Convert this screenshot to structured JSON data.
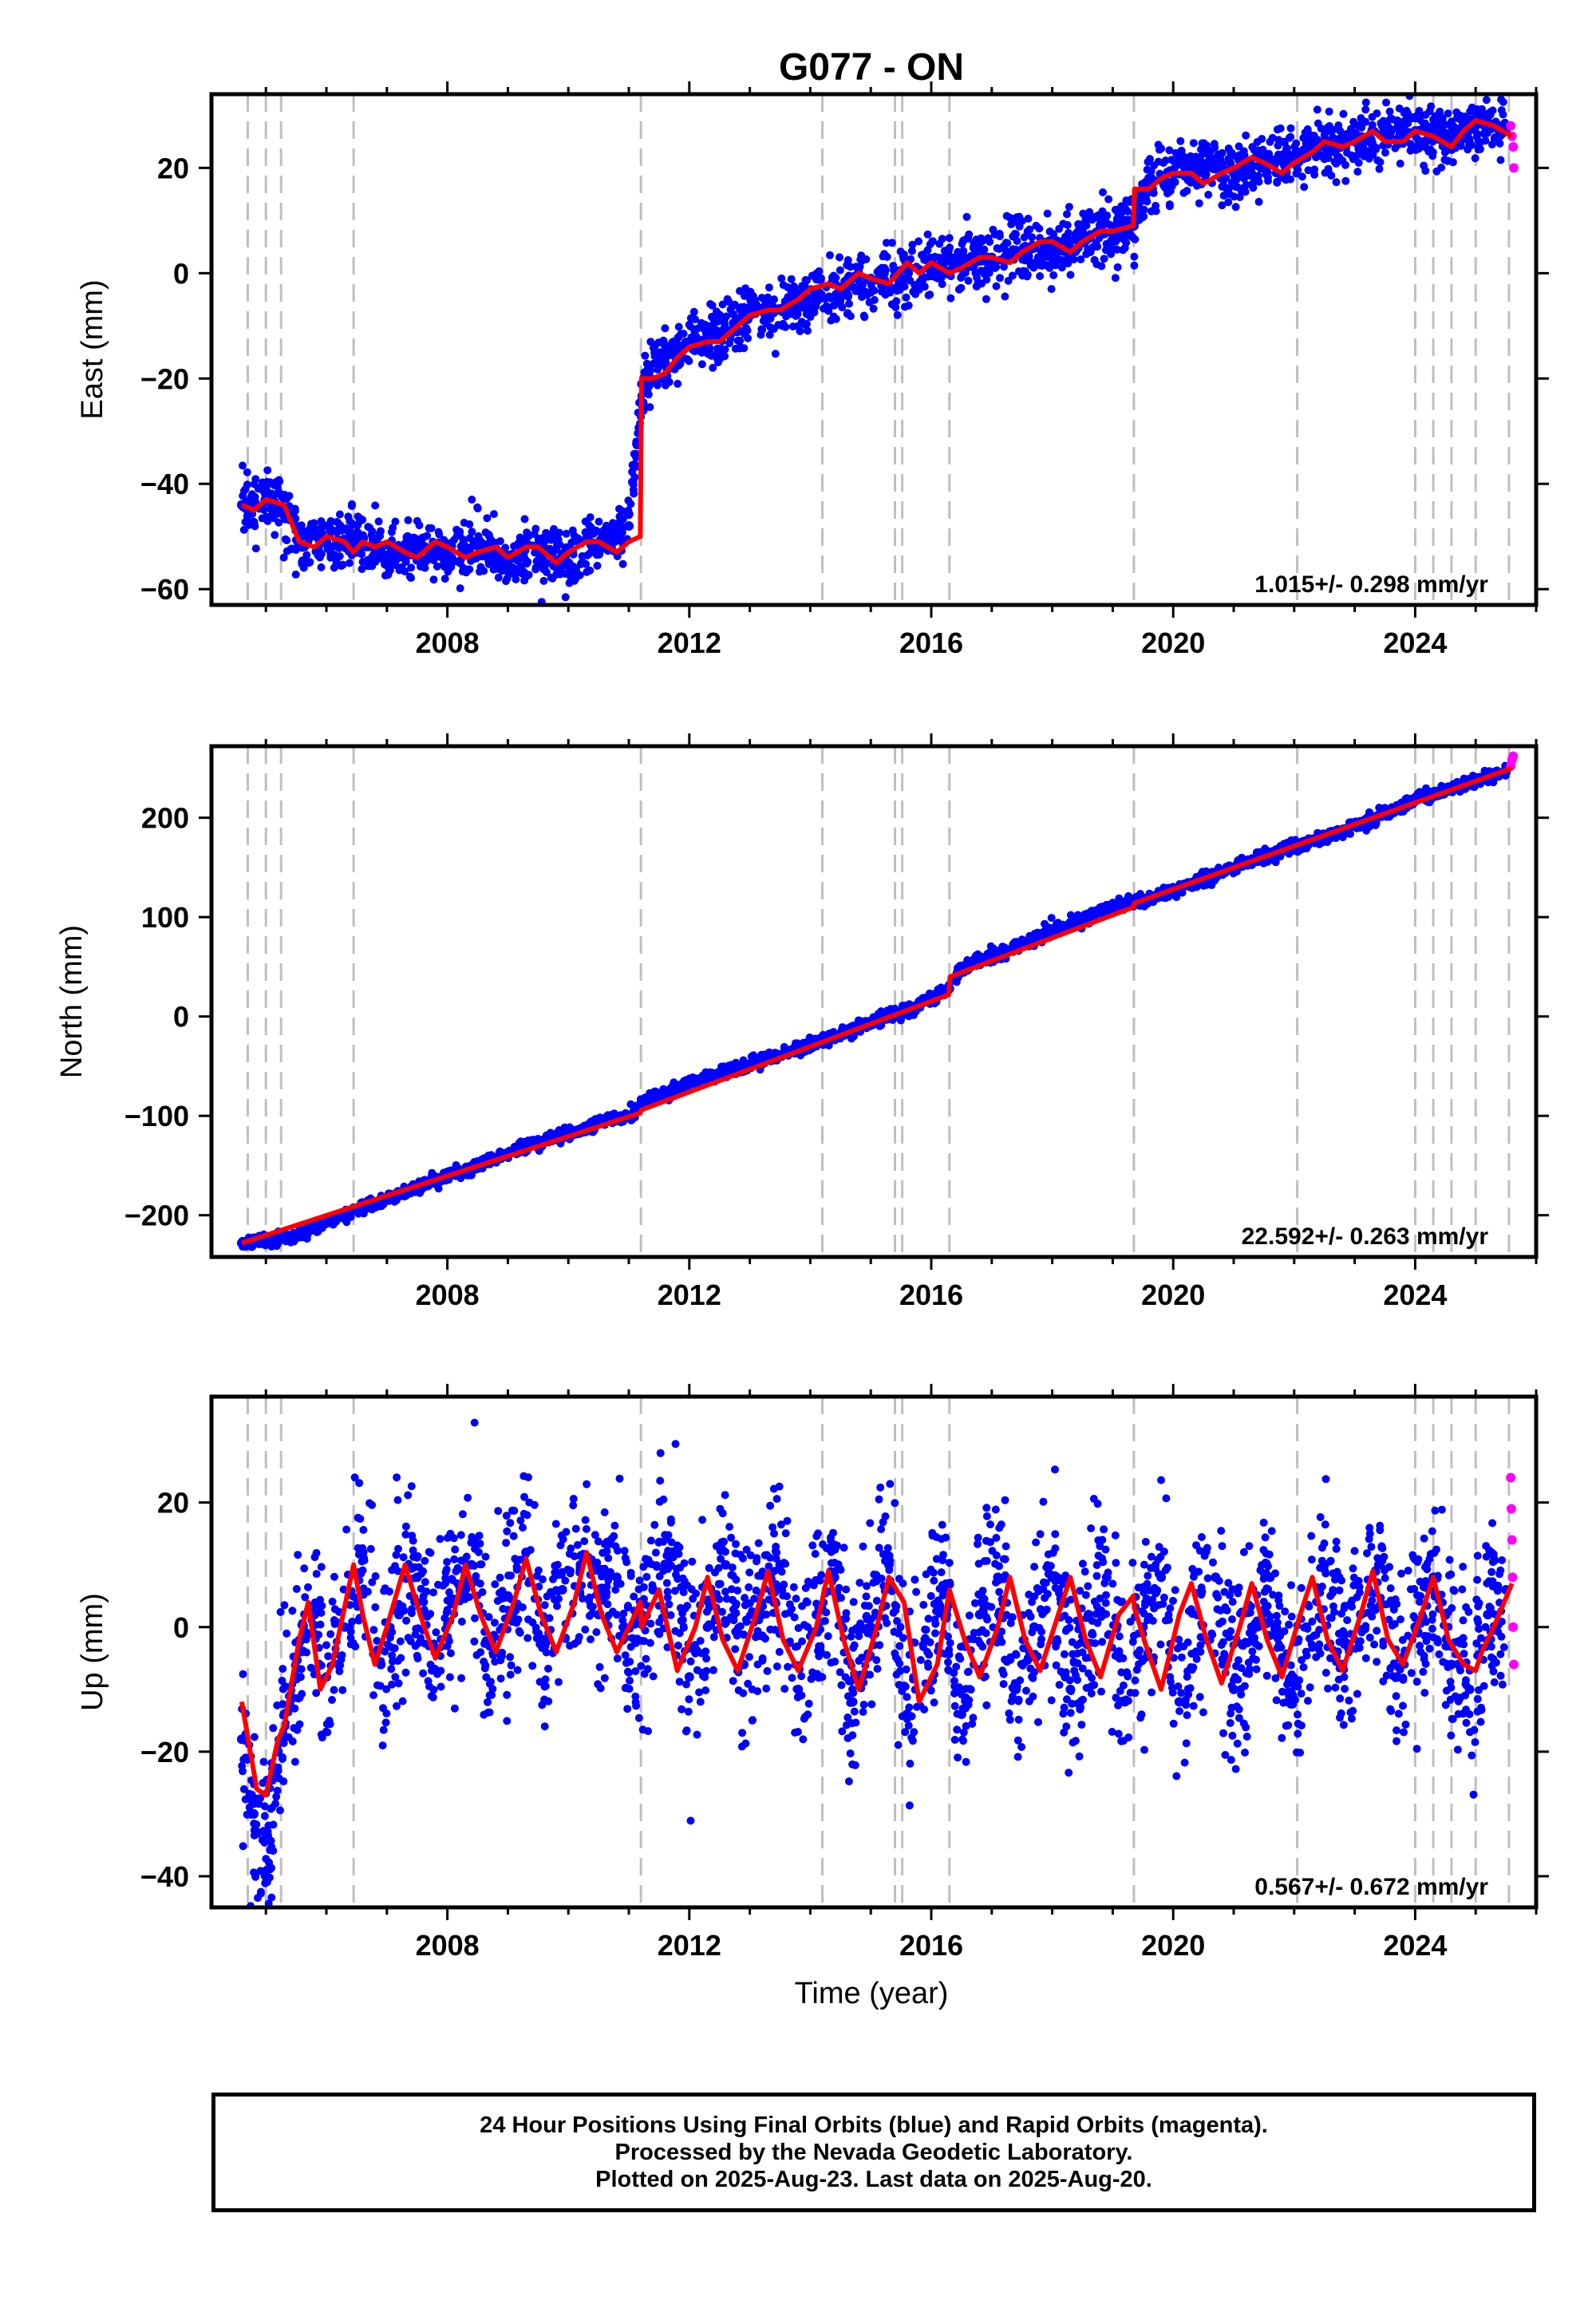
{
  "title": "G077 - ON",
  "colors": {
    "final_orbits": "#0000ff",
    "rapid_orbits": "#ff00ff",
    "model": "#ff0000",
    "event_lines": "#bfbfbf",
    "frame": "#000000"
  },
  "xlabel": "Time (year)",
  "caption": [
    "24 Hour Positions Using Final Orbits (blue) and Rapid Orbits (magenta).",
    "Processed by the Nevada Geodetic Laboratory.",
    "Plotted on 2025-Aug-23. Last data on 2025-Aug-20."
  ],
  "chart_data": [
    {
      "type": "scatter",
      "component": "east",
      "ylabel": "East (mm)",
      "xlim": [
        2004.1,
        2026.0
      ],
      "ylim": [
        -63,
        34
      ],
      "xticks": [
        2008,
        2012,
        2016,
        2020,
        2024
      ],
      "yticks": [
        -60,
        -40,
        -20,
        0,
        20
      ],
      "grid": false,
      "rate_label": "1.015+/- 0.298 mm/yr",
      "event_lines": [
        2004.7,
        2005.0,
        2005.25,
        2006.45,
        2011.2,
        2014.2,
        2015.4,
        2015.52,
        2016.3,
        2019.35,
        2022.05,
        2024.0,
        2024.3,
        2024.6,
        2025.0,
        2025.55
      ],
      "series": [
        {
          "name": "Final Orbits",
          "x": [
            2004.6,
            2005.0,
            2005.3,
            2005.6,
            2006.0,
            2006.5,
            2007.0,
            2007.5,
            2008.0,
            2008.5,
            2009.0,
            2009.5,
            2010.0,
            2010.5,
            2011.0,
            2011.25,
            2011.6,
            2012.0,
            2012.5,
            2013.0,
            2013.5,
            2014.0,
            2014.5,
            2015.0,
            2015.5,
            2016.0,
            2016.5,
            2017.0,
            2017.5,
            2018.0,
            2018.5,
            2019.0,
            2019.35,
            2019.6,
            2020.0,
            2020.5,
            2021.0,
            2021.5,
            2022.0,
            2022.5,
            2023.0,
            2023.5,
            2024.0,
            2024.5,
            2025.0,
            2025.5
          ],
          "y": [
            -44,
            -42,
            -45,
            -52,
            -51,
            -50,
            -54,
            -52,
            -54,
            -51,
            -55,
            -53,
            -55,
            -52,
            -48,
            -20,
            -16,
            -13,
            -12,
            -8,
            -7,
            -5,
            -3,
            -1,
            -1,
            1,
            2,
            3,
            4,
            5,
            7,
            8,
            9,
            18,
            19,
            20,
            19,
            21,
            22,
            24,
            25,
            26,
            27,
            26,
            28,
            27
          ]
        },
        {
          "name": "Rapid Orbits",
          "x": [
            2025.58,
            2025.6,
            2025.62,
            2025.63
          ],
          "y": [
            28,
            26,
            24,
            20
          ]
        }
      ],
      "model": {
        "x": [
          2004.6,
          2004.8,
          2005.0,
          2005.3,
          2005.55,
          2005.8,
          2006.0,
          2006.3,
          2006.45,
          2006.6,
          2006.8,
          2007.0,
          2007.3,
          2007.5,
          2007.8,
          2008.0,
          2008.3,
          2008.5,
          2008.8,
          2009.0,
          2009.3,
          2009.5,
          2009.8,
          2010.0,
          2010.3,
          2010.5,
          2010.8,
          2011.0,
          2011.19,
          2011.21,
          2011.4,
          2011.6,
          2011.8,
          2012.0,
          2012.3,
          2012.5,
          2012.8,
          2013.0,
          2013.3,
          2013.5,
          2013.8,
          2014.0,
          2014.3,
          2014.5,
          2014.8,
          2015.0,
          2015.3,
          2015.45,
          2015.6,
          2015.8,
          2016.0,
          2016.3,
          2016.5,
          2016.8,
          2017.0,
          2017.3,
          2017.5,
          2017.8,
          2018.0,
          2018.3,
          2018.5,
          2018.8,
          2019.0,
          2019.34,
          2019.36,
          2019.6,
          2019.8,
          2020.0,
          2020.3,
          2020.5,
          2020.8,
          2021.0,
          2021.3,
          2021.5,
          2021.8,
          2022.0,
          2022.3,
          2022.5,
          2022.8,
          2023.0,
          2023.3,
          2023.5,
          2023.8,
          2024.0,
          2024.3,
          2024.6,
          2024.8,
          2025.0,
          2025.3,
          2025.6
        ],
        "y": [
          -44,
          -45,
          -43,
          -44,
          -51,
          -52,
          -50,
          -51,
          -53,
          -51,
          -52,
          -51,
          -53,
          -54,
          -51,
          -52,
          -54,
          -53,
          -52,
          -54,
          -52,
          -52,
          -55,
          -53,
          -51,
          -51,
          -53,
          -51,
          -50,
          -20,
          -20,
          -19,
          -16,
          -14,
          -13,
          -13,
          -10,
          -8,
          -7,
          -7,
          -5,
          -3,
          -2,
          -3,
          0,
          -1,
          -2,
          0,
          2,
          0,
          2,
          0,
          1,
          3,
          3,
          2,
          4,
          6,
          6,
          4,
          6,
          8,
          8,
          9,
          16,
          16,
          18,
          19,
          19,
          17,
          19,
          20,
          22,
          21,
          19,
          21,
          23,
          25,
          24,
          25,
          27,
          25,
          25,
          27,
          26,
          24,
          27,
          29,
          28,
          26
        ]
      }
    },
    {
      "type": "scatter",
      "component": "north",
      "ylabel": "North (mm)",
      "xlim": [
        2004.1,
        2026.0
      ],
      "ylim": [
        -242,
        272
      ],
      "xticks": [
        2008,
        2012,
        2016,
        2020,
        2024
      ],
      "yticks": [
        -200,
        -100,
        0,
        100,
        200
      ],
      "grid": false,
      "rate_label": "22.592+/- 0.263 mm/yr",
      "event_lines": [
        2004.7,
        2005.0,
        2005.25,
        2006.45,
        2011.2,
        2014.2,
        2015.4,
        2015.52,
        2016.3,
        2019.35,
        2022.05,
        2024.0,
        2024.3,
        2024.6,
        2025.0,
        2025.55
      ],
      "series": [
        {
          "name": "Final Orbits",
          "x": [
            2004.6,
            2005.0,
            2005.5,
            2006.0,
            2006.5,
            2007.0,
            2007.5,
            2008.0,
            2008.5,
            2009.0,
            2009.5,
            2010.0,
            2010.5,
            2011.0,
            2011.25,
            2011.5,
            2012.0,
            2012.5,
            2013.0,
            2013.5,
            2014.0,
            2014.5,
            2015.0,
            2015.5,
            2016.0,
            2016.3,
            2016.5,
            2017.0,
            2017.5,
            2018.0,
            2018.5,
            2019.0,
            2019.5,
            2020.0,
            2020.5,
            2021.0,
            2021.5,
            2022.0,
            2022.5,
            2023.0,
            2023.5,
            2024.0,
            2024.5,
            2025.0,
            2025.5
          ],
          "y": [
            -228,
            -226,
            -220,
            -208,
            -195,
            -184,
            -172,
            -160,
            -150,
            -137,
            -127,
            -118,
            -106,
            -100,
            -88,
            -80,
            -68,
            -58,
            -48,
            -40,
            -28,
            -18,
            -6,
            4,
            18,
            28,
            48,
            60,
            72,
            88,
            98,
            110,
            116,
            126,
            138,
            150,
            160,
            172,
            180,
            192,
            204,
            218,
            228,
            238,
            246
          ]
        },
        {
          "name": "Rapid Orbits",
          "x": [
            2025.58,
            2025.6,
            2025.62
          ],
          "y": [
            252,
            258,
            262
          ]
        }
      ],
      "model": {
        "x": [
          2004.6,
          2011.19,
          2011.21,
          2016.29,
          2016.31,
          2019.34,
          2019.36,
          2025.6
        ],
        "y": [
          -228,
          -97,
          -94,
          22,
          40,
          110,
          114,
          250
        ]
      }
    },
    {
      "type": "scatter",
      "component": "up",
      "ylabel": "Up (mm)",
      "xlim": [
        2004.1,
        2026.0
      ],
      "ylim": [
        -45,
        37
      ],
      "xticks": [
        2008,
        2012,
        2016,
        2020,
        2024
      ],
      "yticks": [
        -40,
        -20,
        0,
        20
      ],
      "grid": false,
      "rate_label": "0.567+/- 0.672 mm/yr",
      "event_lines": [
        2004.7,
        2005.0,
        2005.25,
        2006.45,
        2011.2,
        2014.2,
        2015.4,
        2015.52,
        2016.3,
        2019.35,
        2022.05,
        2024.0,
        2024.3,
        2024.6,
        2025.0,
        2025.55
      ],
      "series": [
        {
          "name": "Final Orbits",
          "x": [
            2004.6,
            2004.8,
            2005.0,
            2005.2,
            2005.5,
            2005.8,
            2006.0,
            2006.3,
            2006.6,
            2006.9,
            2007.2,
            2007.5,
            2007.8,
            2008.1,
            2008.4,
            2008.7,
            2009.0,
            2009.3,
            2009.6,
            2009.9,
            2010.2,
            2010.5,
            2010.8,
            2011.1,
            2011.4,
            2011.7,
            2012.0,
            2012.3,
            2012.6,
            2012.9,
            2013.2,
            2013.5,
            2013.8,
            2014.1,
            2014.4,
            2014.7,
            2015.0,
            2015.3,
            2015.6,
            2015.9,
            2016.2,
            2016.5,
            2016.8,
            2017.1,
            2017.4,
            2017.7,
            2018.0,
            2018.3,
            2018.6,
            2018.9,
            2019.2,
            2019.5,
            2019.8,
            2020.1,
            2020.4,
            2020.7,
            2021.0,
            2021.3,
            2021.6,
            2021.9,
            2022.2,
            2022.5,
            2022.8,
            2023.1,
            2023.4,
            2023.7,
            2024.0,
            2024.3,
            2024.6,
            2024.9,
            2025.2,
            2025.5
          ],
          "y": [
            -18,
            -30,
            -40,
            -20,
            -8,
            2,
            -8,
            0,
            12,
            -6,
            2,
            8,
            -4,
            4,
            10,
            -3,
            5,
            12,
            -2,
            6,
            10,
            2,
            8,
            -2,
            6,
            12,
            -8,
            0,
            10,
            -6,
            2,
            10,
            -10,
            2,
            8,
            -12,
            0,
            10,
            -14,
            -2,
            6,
            -14,
            2,
            8,
            -10,
            0,
            8,
            -10,
            2,
            8,
            -12,
            0,
            8,
            -12,
            2,
            8,
            -10,
            0,
            8,
            -12,
            0,
            10,
            -6,
            2,
            10,
            -8,
            0,
            8,
            -6,
            -10,
            2,
            6
          ]
        },
        {
          "name": "Rapid Orbits",
          "x": [
            2025.58,
            2025.59,
            2025.6,
            2025.61,
            2025.62,
            2025.63
          ],
          "y": [
            24,
            19,
            14,
            8,
            0,
            -6
          ]
        }
      ],
      "model": {
        "x": [
          2004.6,
          2004.85,
          2005.0,
          2005.2,
          2005.3,
          2005.55,
          2005.7,
          2005.9,
          2006.1,
          2006.45,
          2006.6,
          2006.8,
          2007.0,
          2007.3,
          2007.55,
          2007.8,
          2008.1,
          2008.3,
          2008.55,
          2008.8,
          2009.1,
          2009.3,
          2009.55,
          2009.8,
          2010.1,
          2010.3,
          2010.55,
          2010.8,
          2011.1,
          2011.19,
          2011.21,
          2011.5,
          2011.8,
          2012.1,
          2012.3,
          2012.55,
          2012.8,
          2013.1,
          2013.3,
          2013.55,
          2013.8,
          2014.1,
          2014.3,
          2014.55,
          2014.8,
          2015.1,
          2015.3,
          2015.55,
          2015.8,
          2016.1,
          2016.3,
          2016.55,
          2016.8,
          2017.1,
          2017.3,
          2017.55,
          2017.8,
          2018.1,
          2018.3,
          2018.55,
          2018.8,
          2019.1,
          2019.34,
          2019.36,
          2019.55,
          2019.8,
          2020.1,
          2020.3,
          2020.55,
          2020.8,
          2021.1,
          2021.3,
          2021.55,
          2021.8,
          2022.1,
          2022.3,
          2022.55,
          2022.8,
          2023.1,
          2023.3,
          2023.55,
          2023.8,
          2024.1,
          2024.3,
          2024.55,
          2024.8,
          2025.0,
          2025.1,
          2025.3,
          2025.6
        ],
        "y": [
          -12,
          -26,
          -27,
          -18,
          -16,
          -2,
          4,
          -10,
          -6,
          10,
          2,
          -6,
          0,
          10,
          2,
          -5,
          2,
          10,
          2,
          -4,
          4,
          11,
          2,
          -4,
          4,
          12,
          2,
          -4,
          2,
          4,
          0,
          6,
          -7,
          0,
          8,
          -2,
          -7,
          2,
          9,
          -2,
          -7,
          0,
          9,
          -2,
          -10,
          0,
          8,
          4,
          -12,
          -6,
          6,
          -2,
          -8,
          0,
          8,
          -2,
          -7,
          2,
          8,
          -2,
          -8,
          2,
          5,
          3,
          -3,
          -10,
          2,
          7,
          -2,
          -9,
          0,
          7,
          -2,
          -8,
          2,
          8,
          -2,
          -7,
          2,
          9,
          -2,
          -6,
          2,
          8,
          -2,
          -6,
          -7,
          -4,
          0,
          7
        ]
      }
    }
  ]
}
